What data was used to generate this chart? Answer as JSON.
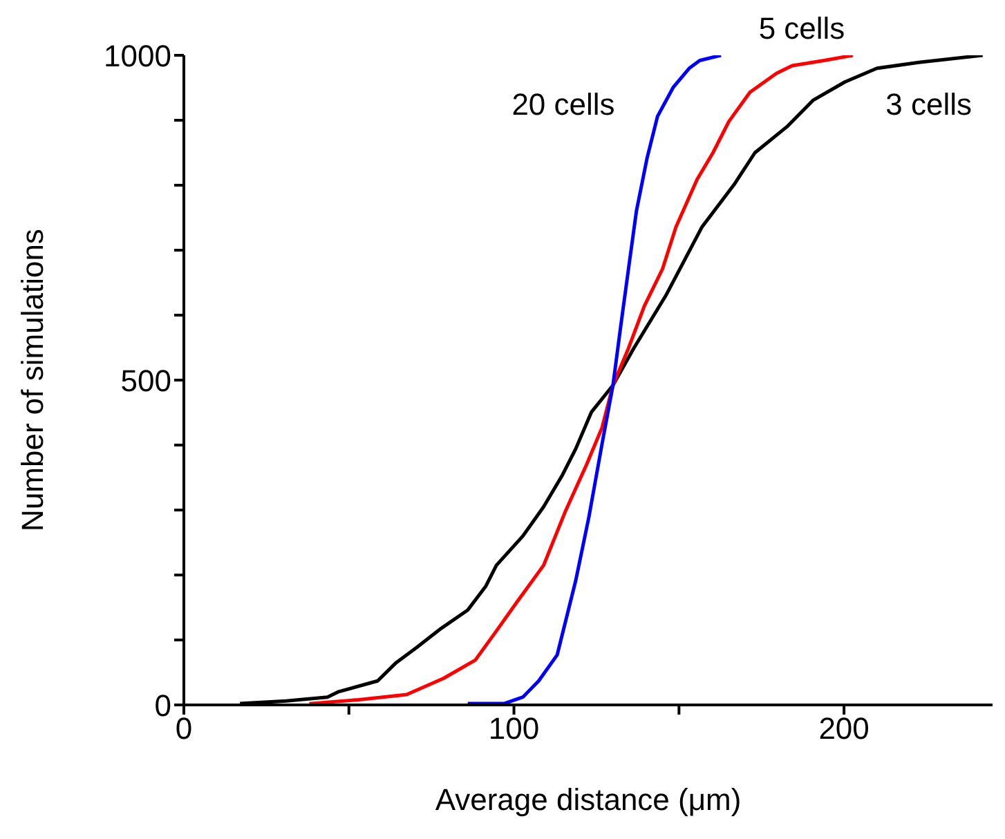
{
  "chart_data": {
    "type": "line",
    "xlabel": "Average distance (μm)",
    "ylabel": "Number of simulations",
    "xlim": [
      0,
      245
    ],
    "ylim": [
      0,
      1000
    ],
    "xticks": [
      0,
      {
        "value": 50,
        "label": null
      },
      100,
      {
        "value": 150,
        "label": null
      },
      200
    ],
    "yticks": [
      0,
      {
        "value": 100,
        "label": null
      },
      {
        "value": 200,
        "label": null
      },
      {
        "value": 300,
        "label": null
      },
      {
        "value": 400,
        "label": null
      },
      500,
      {
        "value": 600,
        "label": null
      },
      {
        "value": 700,
        "label": null
      },
      {
        "value": 800,
        "label": null
      },
      {
        "value": 900,
        "label": null
      },
      1000
    ],
    "grid": false,
    "legend": false,
    "marker": "none",
    "line_style": "solid",
    "series": [
      {
        "name": "3 cells",
        "color": "#000000",
        "x": [
          17,
          31,
          43.5,
          46.7,
          58.7,
          64.3,
          70.7,
          78,
          86,
          91.5,
          94.7,
          102.7,
          109,
          114.7,
          118.7,
          123.5,
          130,
          136.3,
          146,
          157,
          166.7,
          173,
          182.7,
          190.7,
          200.3,
          210,
          222.7,
          242
        ],
        "values": [
          2,
          6,
          12,
          20,
          37,
          65,
          89,
          118,
          146,
          183,
          215,
          260,
          305,
          354,
          394,
          451,
          492,
          549,
          630,
          736,
          801,
          850,
          890,
          931,
          959,
          980,
          989,
          1000
        ]
      },
      {
        "name": "5 cells",
        "color": "#ff0000",
        "x": [
          38,
          53,
          67.5,
          78.7,
          88.3,
          94.7,
          101,
          109,
          115.5,
          122,
          126.7,
          130,
          134.7,
          139.5,
          145,
          149.1,
          155.5,
          160.3,
          165.1,
          171.5,
          179.5,
          184.3,
          194,
          202.7
        ],
        "values": [
          2,
          8,
          16,
          41,
          69,
          114,
          159,
          215,
          297,
          370,
          427,
          492,
          549,
          614,
          671,
          736,
          809,
          850,
          898,
          943,
          972,
          984,
          992,
          1000
        ]
      },
      {
        "name": "20 cells",
        "color": "#0000ff",
        "x": [
          86,
          97,
          102.7,
          107.5,
          113.1,
          118.7,
          122.7,
          126.7,
          130,
          132.3,
          134.7,
          137.1,
          140.3,
          143.5,
          148.3,
          153.1,
          156.3,
          162.7
        ],
        "values": [
          2,
          2,
          12,
          37,
          77,
          191,
          289,
          402,
          492,
          581,
          671,
          760,
          841,
          906,
          951,
          980,
          992,
          1000
        ]
      }
    ]
  }
}
